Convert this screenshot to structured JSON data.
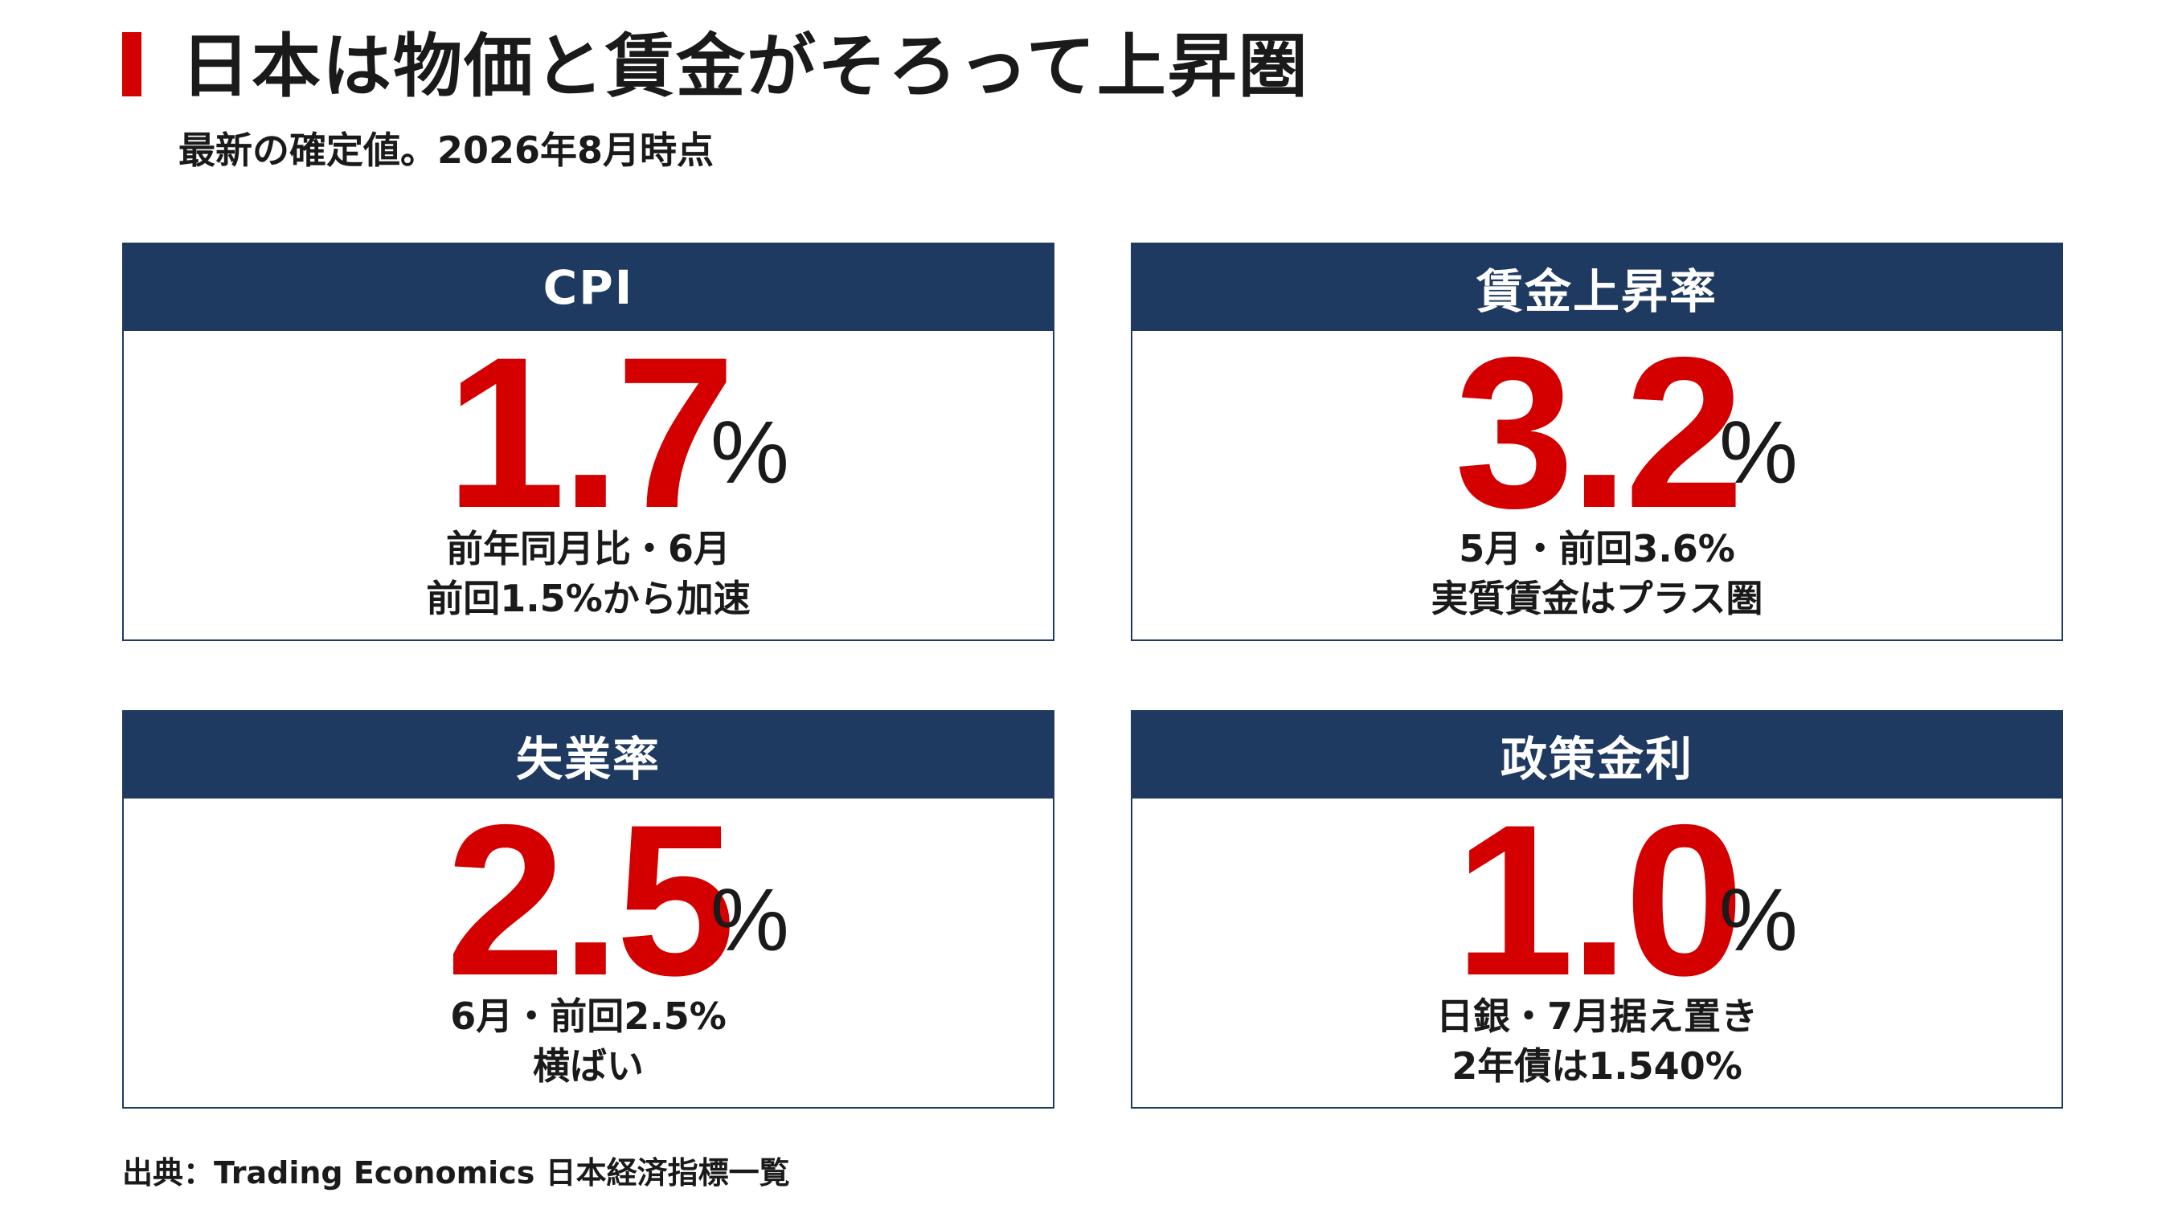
{
  "header": {
    "title": "日本は物価と賃金がそろって上昇圏",
    "subtitle": "最新の確定値。2026年8月時点"
  },
  "colors": {
    "accent_red": "#d40000",
    "header_navy": "#1f3a60"
  },
  "cards": [
    {
      "label": "CPI",
      "value": "1.7",
      "unit": "%",
      "note_line1": "前年同月比・6月",
      "note_line2": "前回1.5%から加速"
    },
    {
      "label": "賃金上昇率",
      "value": "3.2",
      "unit": "%",
      "note_line1": "5月・前回3.6%",
      "note_line2": "実質賃金はプラス圏"
    },
    {
      "label": "失業率",
      "value": "2.5",
      "unit": "%",
      "note_line1": "6月・前回2.5%",
      "note_line2": "横ばい"
    },
    {
      "label": "政策金利",
      "value": "1.0",
      "unit": "%",
      "note_line1": "日銀・7月据え置き",
      "note_line2": "2年債は1.540%"
    }
  ],
  "footer": {
    "source": "出典：Trading Economics 日本経済指標一覧"
  }
}
